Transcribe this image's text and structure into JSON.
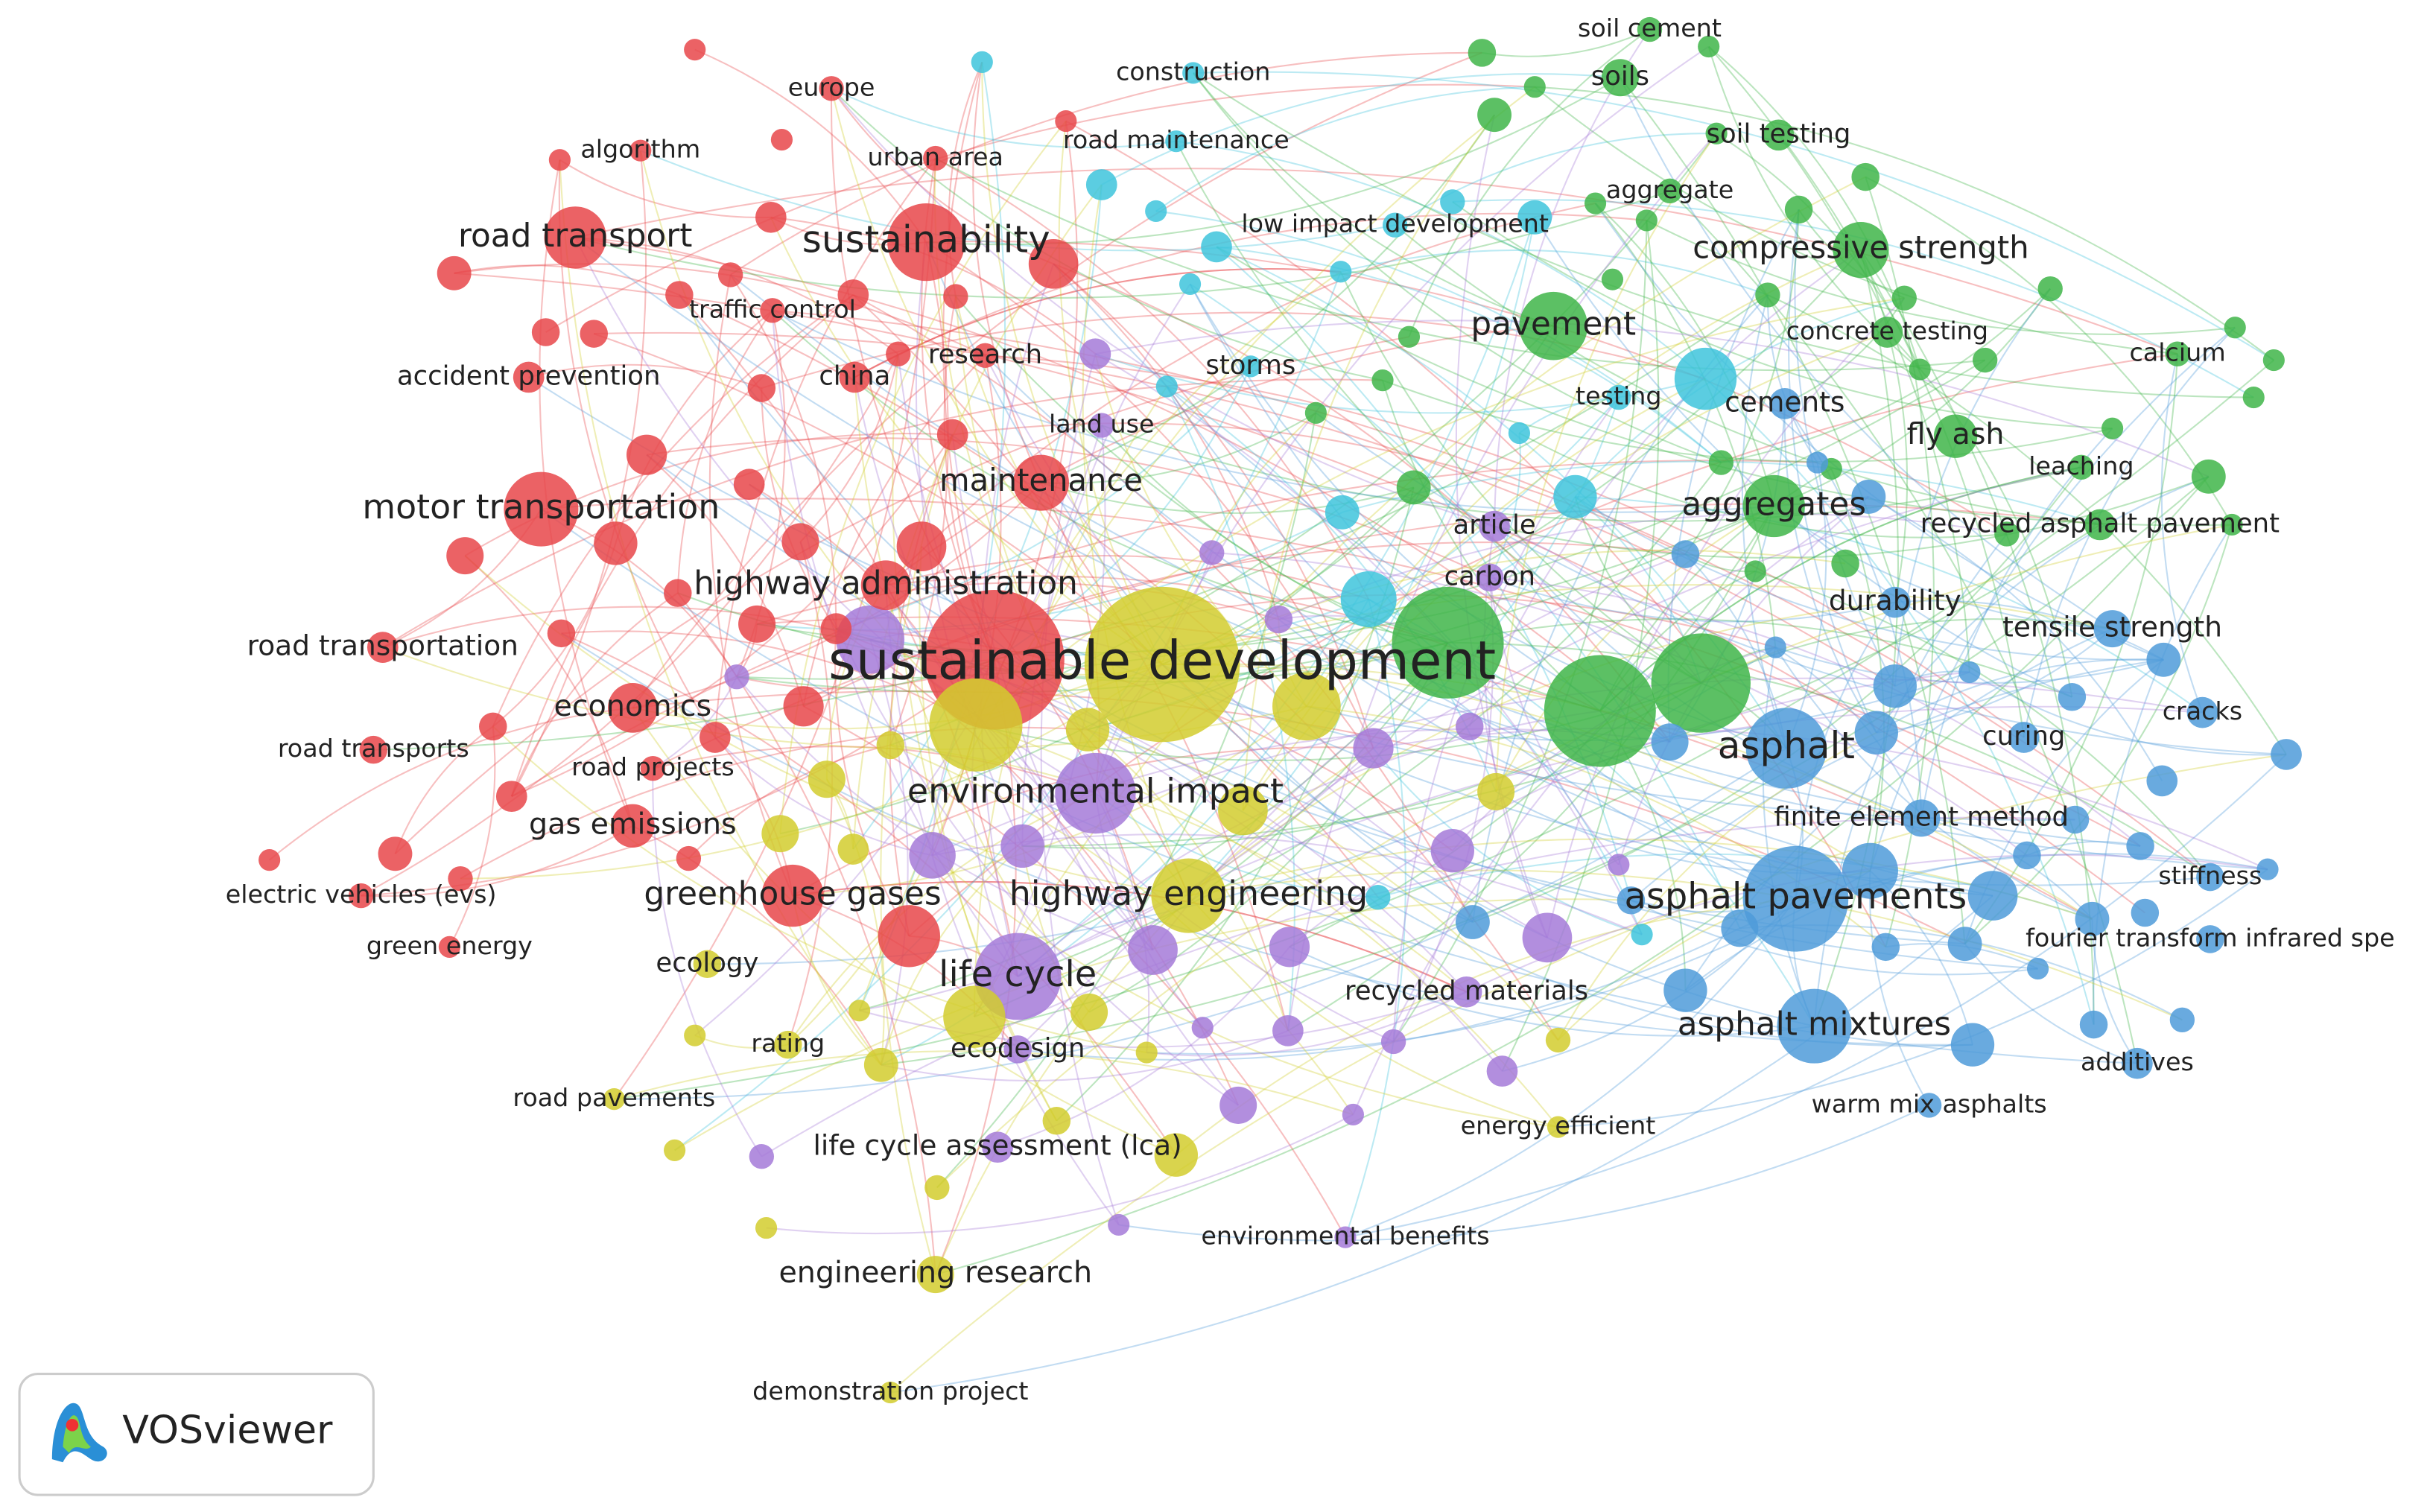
{
  "clusters": [
    {
      "color": "#e8474a",
      "nodes": [
        {
          "label": "europe"
        },
        {
          "label": "algorithm"
        },
        {
          "label": "urban area"
        },
        {
          "label": "road transport"
        },
        {
          "label": "sustainability"
        },
        {
          "label": "traffic control"
        },
        {
          "label": "accident prevention"
        },
        {
          "label": "china"
        },
        {
          "label": "research"
        },
        {
          "label": "maintenance"
        },
        {
          "label": "motor transportation"
        },
        {
          "label": "highway administration"
        },
        {
          "label": "road transportation"
        },
        {
          "label": "economics"
        },
        {
          "label": "road transports"
        },
        {
          "label": "road projects"
        },
        {
          "label": "gas emissions"
        },
        {
          "label": "electric vehicles (evs)"
        },
        {
          "label": "green energy"
        },
        {
          "label": "greenhouse gases"
        }
      ]
    },
    {
      "color": "#3ec4dc",
      "nodes": [
        {
          "label": "construction"
        },
        {
          "label": "road maintenance"
        },
        {
          "label": "low impact development"
        },
        {
          "label": "storms"
        },
        {
          "label": "testing"
        }
      ]
    },
    {
      "color": "#3fb549",
      "nodes": [
        {
          "label": "soil cement"
        },
        {
          "label": "soils"
        },
        {
          "label": "soil testing"
        },
        {
          "label": "aggregate"
        },
        {
          "label": "compressive strength"
        },
        {
          "label": "pavement"
        },
        {
          "label": "concrete testing"
        },
        {
          "label": "calcium"
        },
        {
          "label": "fly ash"
        },
        {
          "label": "leaching"
        },
        {
          "label": "aggregates"
        },
        {
          "label": "recycled asphalt pavement"
        }
      ]
    },
    {
      "color": "#4f9bd9",
      "nodes": [
        {
          "label": "cements"
        },
        {
          "label": "durability"
        },
        {
          "label": "tensile strength"
        },
        {
          "label": "curing"
        },
        {
          "label": "cracks"
        },
        {
          "label": "asphalt"
        },
        {
          "label": "finite element method"
        },
        {
          "label": "stiffness"
        },
        {
          "label": "asphalt pavements"
        },
        {
          "label": "fourier transform infrared spe"
        },
        {
          "label": "asphalt mixtures"
        },
        {
          "label": "additives"
        },
        {
          "label": "warm mix asphalts"
        }
      ]
    },
    {
      "color": "#d2cd2e",
      "nodes": [
        {
          "label": "sustainable development"
        },
        {
          "label": "highway engineering"
        },
        {
          "label": "ecology"
        },
        {
          "label": "rating"
        },
        {
          "label": "road pavements"
        },
        {
          "label": "energy efficient"
        },
        {
          "label": "engineering research"
        },
        {
          "label": "demonstration project"
        }
      ]
    },
    {
      "color": "#a57ad8",
      "nodes": [
        {
          "label": "land use"
        },
        {
          "label": "article"
        },
        {
          "label": "carbon"
        },
        {
          "label": "environmental impact"
        },
        {
          "label": "life cycle"
        },
        {
          "label": "recycled materials"
        },
        {
          "label": "ecodesign"
        },
        {
          "label": "life cycle assessment (lca)"
        },
        {
          "label": "environmental benefits"
        }
      ]
    }
  ],
  "logo": {
    "text": "VOSviewer"
  }
}
